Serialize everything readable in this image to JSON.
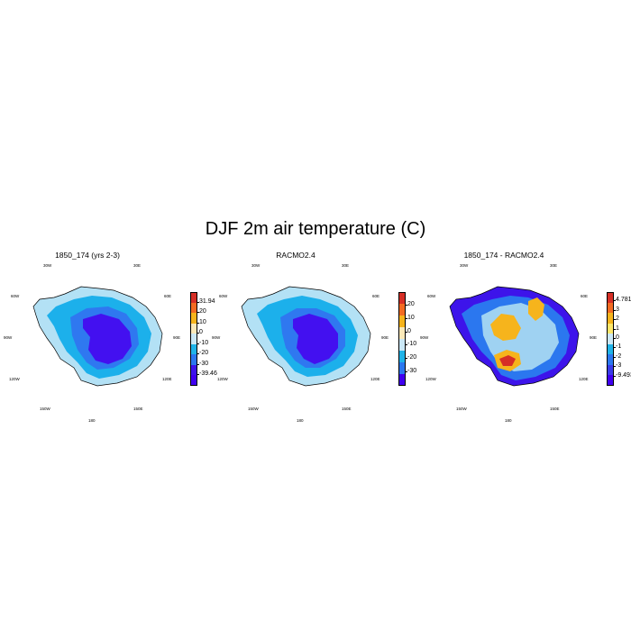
{
  "title": "DJF 2m air temperature (C)",
  "panels": [
    {
      "title": "1850_174 (yrs 2-3)",
      "colorbar": {
        "ticks": [
          "31.94",
          "20",
          "10",
          "0",
          "-10",
          "-20",
          "-30",
          "-39.46"
        ],
        "colors": [
          "#d62f26",
          "#f36b22",
          "#f6b41c",
          "#fbe9b9",
          "#cbe8f6",
          "#1fb3e8",
          "#2b77ef",
          "#3d14ea",
          "#4000f0"
        ]
      },
      "map_colors": {
        "coast": "#b3e1f5",
        "mid": "#1cb0eb",
        "inner": "#2f78f0",
        "core": "#4310f0"
      }
    },
    {
      "title": "RACMO2.4",
      "colorbar": {
        "ticks": [
          "20",
          "10",
          "0",
          "-10",
          "-20",
          "-30"
        ],
        "colors": [
          "#d62f26",
          "#f36b22",
          "#f6b41c",
          "#fbe9b9",
          "#cbe8f6",
          "#1fb3e8",
          "#2b77ef",
          "#4000f0"
        ]
      },
      "map_colors": {
        "coast": "#b3e1f5",
        "mid": "#1cb0eb",
        "inner": "#2f78f0",
        "core": "#4310f0"
      }
    },
    {
      "title": "1850_174 - RACMO2.4",
      "colorbar": {
        "ticks": [
          "4.781",
          "3",
          "2",
          "1",
          "0",
          "-1",
          "-2",
          "-3",
          "-9.493"
        ],
        "colors": [
          "#d62f26",
          "#f36b22",
          "#f6b41c",
          "#fce76a",
          "#cbe8f6",
          "#1fb3e8",
          "#2b77ef",
          "#3a3be8",
          "#4000f0"
        ]
      },
      "map_colors": {
        "coast": "#3d14ea",
        "mid": "#2b77ef",
        "inner": "#9fd2f2",
        "core": "#f6b41c"
      }
    }
  ],
  "longitude_labels": [
    "30W",
    "30E",
    "60W",
    "60E",
    "90W",
    "90E",
    "120W",
    "120E",
    "150W",
    "150E",
    "180"
  ]
}
